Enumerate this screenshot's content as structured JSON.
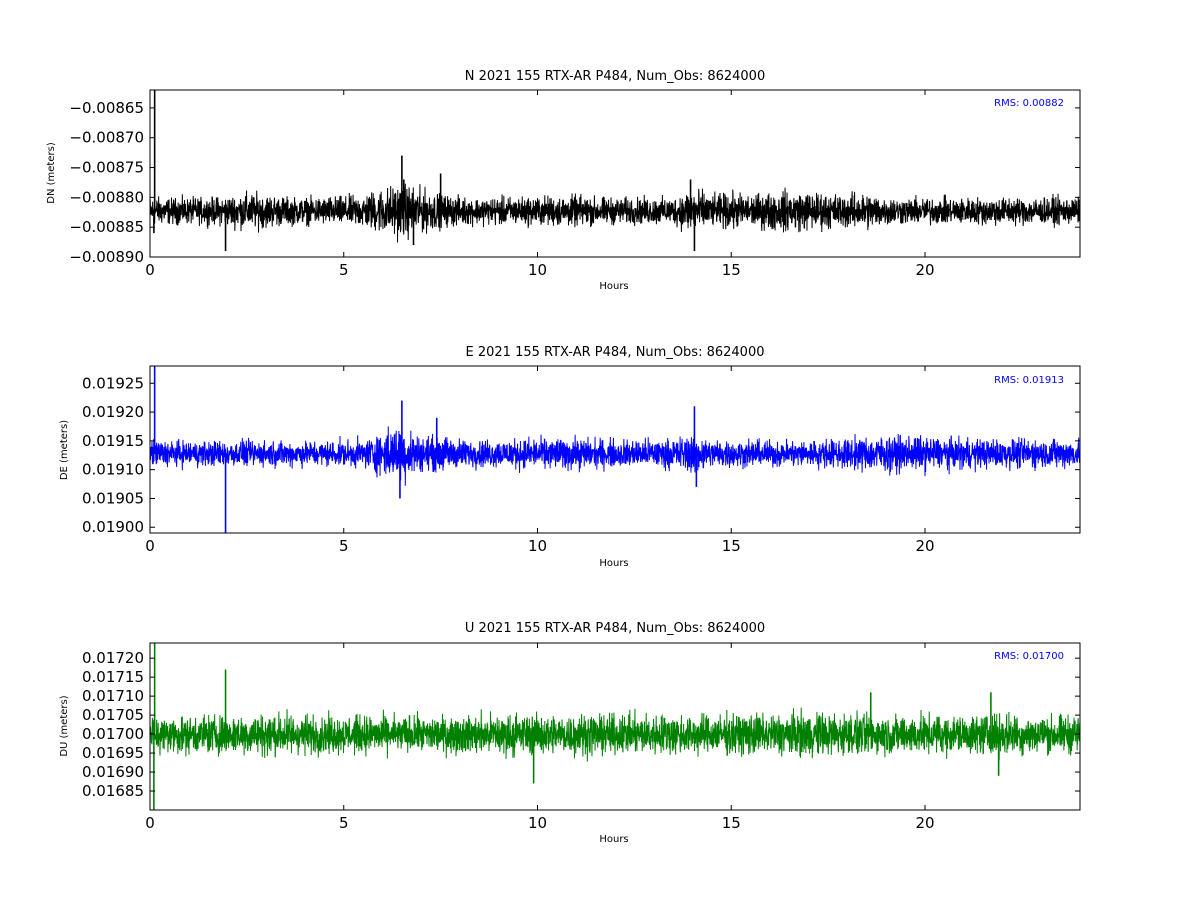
{
  "chart_data": [
    {
      "type": "line",
      "component": "N",
      "title": "N 2021 155 RTX-AR  P484, Num_Obs: 8624000",
      "xlabel": "Hours",
      "ylabel": "DN (meters)",
      "color": "#000000",
      "xlim": [
        0,
        24
      ],
      "ylim": [
        -0.0089,
        -0.00862
      ],
      "xticks": [
        0,
        5,
        10,
        15,
        20
      ],
      "xtick_labels": [
        "0",
        "5",
        "10",
        "15",
        "20"
      ],
      "yticks": [
        -0.0089,
        -0.00885,
        -0.0088,
        -0.00875,
        -0.0087,
        -0.00865
      ],
      "ytick_labels": [
        "−0.00890",
        "−0.00885",
        "−0.00880",
        "−0.00875",
        "−0.00870",
        "−0.00865"
      ],
      "annotation": "RMS:  0.00882",
      "annotation_color": "#0000ff",
      "series": [
        {
          "center": -0.008823,
          "x": [
            0,
            0.5,
            1,
            1.5,
            2,
            2.5,
            3,
            3.5,
            4,
            4.5,
            5,
            5.5,
            6,
            6.5,
            7,
            7.5,
            8,
            8.5,
            9,
            9.5,
            10,
            10.5,
            11,
            11.5,
            12,
            12.5,
            13,
            13.5,
            14,
            14.5,
            15,
            15.5,
            16,
            16.5,
            17,
            17.5,
            18,
            18.5,
            19,
            19.5,
            20,
            20.5,
            21,
            21.5,
            22,
            22.5,
            23,
            23.5,
            24
          ],
          "amplitude": [
            3.3e-05,
            3e-05,
            3e-05,
            3e-05,
            3.4e-05,
            4.2e-05,
            3.8e-05,
            3.2e-05,
            3e-05,
            3.2e-05,
            3.3e-05,
            3.8e-05,
            5.2e-05,
            6.2e-05,
            5e-05,
            3.8e-05,
            3.2e-05,
            3e-05,
            3.2e-05,
            3.2e-05,
            3.3e-05,
            3.4e-05,
            3.5e-05,
            3.2e-05,
            3e-05,
            3e-05,
            3.1e-05,
            3e-05,
            5.5e-05,
            3.5e-05,
            4.2e-05,
            3.6e-05,
            4.3e-05,
            4.6e-05,
            4.4e-05,
            4e-05,
            3.8e-05,
            4.2e-05,
            3.2e-05,
            3e-05,
            3e-05,
            3e-05,
            3e-05,
            3.1e-05,
            3.2e-05,
            3.1e-05,
            3e-05,
            3.1e-05,
            3e-05
          ],
          "spikes": [
            {
              "x": 0.12,
              "y": -0.00862
            },
            {
              "x": 0.1,
              "y": -0.00886
            },
            {
              "x": 1.95,
              "y": -0.00889
            },
            {
              "x": 6.5,
              "y": -0.00873
            },
            {
              "x": 6.55,
              "y": -0.00877
            },
            {
              "x": 6.8,
              "y": -0.00888
            },
            {
              "x": 7.5,
              "y": -0.00876
            },
            {
              "x": 14.05,
              "y": -0.00889
            },
            {
              "x": 13.95,
              "y": -0.00877
            }
          ]
        }
      ]
    },
    {
      "type": "line",
      "component": "E",
      "title": "E 2021 155 RTX-AR  P484, Num_Obs: 8624000",
      "xlabel": "Hours",
      "ylabel": "DE (meters)",
      "color": "#0000ff",
      "xlim": [
        0,
        24
      ],
      "ylim": [
        0.01899,
        0.01928
      ],
      "xticks": [
        0,
        5,
        10,
        15,
        20
      ],
      "xtick_labels": [
        "0",
        "5",
        "10",
        "15",
        "20"
      ],
      "yticks": [
        0.019,
        0.01905,
        0.0191,
        0.01915,
        0.0192,
        0.01925
      ],
      "ytick_labels": [
        "0.01900",
        "0.01905",
        "0.01910",
        "0.01915",
        "0.01920",
        "0.01925"
      ],
      "annotation": "RMS:  0.01913",
      "annotation_color": "#0000ff",
      "series": [
        {
          "center": 0.019128,
          "x": [
            0,
            0.5,
            1,
            1.5,
            2,
            2.5,
            3,
            3.5,
            4,
            4.5,
            5,
            5.5,
            6,
            6.5,
            7,
            7.5,
            8,
            8.5,
            9,
            9.5,
            10,
            10.5,
            11,
            11.5,
            12,
            12.5,
            13,
            13.5,
            14,
            14.5,
            15,
            15.5,
            16,
            16.5,
            17,
            17.5,
            18,
            18.5,
            19,
            19.5,
            20,
            20.5,
            21,
            21.5,
            22,
            22.5,
            23,
            23.5,
            24
          ],
          "amplitude": [
            3.3e-05,
            3e-05,
            3e-05,
            3e-05,
            3e-05,
            3e-05,
            3e-05,
            3e-05,
            3e-05,
            3e-05,
            3e-05,
            3.2e-05,
            5.2e-05,
            6.8e-05,
            4e-05,
            4.2e-05,
            3.4e-05,
            3.2e-05,
            3.3e-05,
            3.5e-05,
            3.5e-05,
            3.6e-05,
            3.8e-05,
            3.4e-05,
            3.3e-05,
            3.3e-05,
            3.4e-05,
            3.4e-05,
            4.8e-05,
            3.3e-05,
            3.2e-05,
            3.1e-05,
            3e-05,
            3.1e-05,
            3.2e-05,
            3.3e-05,
            3.6e-05,
            4e-05,
            4.2e-05,
            4.2e-05,
            4e-05,
            3.6e-05,
            3.6e-05,
            3.4e-05,
            3.4e-05,
            3.4e-05,
            3.4e-05,
            3.4e-05,
            3.4e-05
          ],
          "spikes": [
            {
              "x": 0.12,
              "y": 0.01928
            },
            {
              "x": 1.95,
              "y": 0.01899
            },
            {
              "x": 6.5,
              "y": 0.01922
            },
            {
              "x": 6.45,
              "y": 0.01905
            },
            {
              "x": 7.4,
              "y": 0.01919
            },
            {
              "x": 14.05,
              "y": 0.01921
            },
            {
              "x": 14.1,
              "y": 0.01907
            }
          ]
        }
      ]
    },
    {
      "type": "line",
      "component": "U",
      "title": "U 2021 155 RTX-AR  P484, Num_Obs: 8624000",
      "xlabel": "Hours",
      "ylabel": "DU (meters)",
      "color": "#008000",
      "xlim": [
        0,
        24
      ],
      "ylim": [
        0.0168,
        0.01724
      ],
      "xticks": [
        0,
        5,
        10,
        15,
        20
      ],
      "xtick_labels": [
        "0",
        "5",
        "10",
        "15",
        "20"
      ],
      "yticks": [
        0.01685,
        0.0169,
        0.01695,
        0.017,
        0.01705,
        0.0171,
        0.01715,
        0.0172
      ],
      "ytick_labels": [
        "0.01685",
        "0.01690",
        "0.01695",
        "0.01700",
        "0.01705",
        "0.01710",
        "0.01715",
        "0.01720"
      ],
      "annotation": "RMS:  0.01700",
      "annotation_color": "#0000ff",
      "series": [
        {
          "center": 0.016999,
          "x": [
            0,
            0.5,
            1,
            1.5,
            2,
            2.5,
            3,
            3.5,
            4,
            4.5,
            5,
            5.5,
            6,
            6.5,
            7,
            7.5,
            8,
            8.5,
            9,
            9.5,
            10,
            10.5,
            11,
            11.5,
            12,
            12.5,
            13,
            13.5,
            14,
            14.5,
            15,
            15.5,
            16,
            16.5,
            17,
            17.5,
            18,
            18.5,
            19,
            19.5,
            20,
            20.5,
            21,
            21.5,
            22,
            22.5,
            23,
            23.5,
            24
          ],
          "amplitude": [
            7e-05,
            6.5e-05,
            6.8e-05,
            7e-05,
            7.2e-05,
            7e-05,
            7.5e-05,
            7.8e-05,
            7e-05,
            6.8e-05,
            6.6e-05,
            6.8e-05,
            6.6e-05,
            6.6e-05,
            6.4e-05,
            6.6e-05,
            6.6e-05,
            7e-05,
            7.5e-05,
            7.4e-05,
            7e-05,
            7.2e-05,
            7.4e-05,
            7.2e-05,
            7e-05,
            7e-05,
            7.2e-05,
            7.4e-05,
            7e-05,
            6.8e-05,
            7.2e-05,
            7.4e-05,
            7.2e-05,
            7.8e-05,
            7.6e-05,
            8e-05,
            7.4e-05,
            7.2e-05,
            7e-05,
            6.8e-05,
            7e-05,
            6.8e-05,
            6.8e-05,
            7e-05,
            7.4e-05,
            7e-05,
            6.8e-05,
            7e-05,
            6.8e-05
          ],
          "spikes": [
            {
              "x": 0.12,
              "y": 0.01724
            },
            {
              "x": 0.1,
              "y": 0.0168
            },
            {
              "x": 1.95,
              "y": 0.01717
            },
            {
              "x": 9.9,
              "y": 0.01687
            },
            {
              "x": 18.6,
              "y": 0.01711
            },
            {
              "x": 21.7,
              "y": 0.01711
            },
            {
              "x": 21.9,
              "y": 0.01689
            }
          ]
        }
      ]
    }
  ]
}
